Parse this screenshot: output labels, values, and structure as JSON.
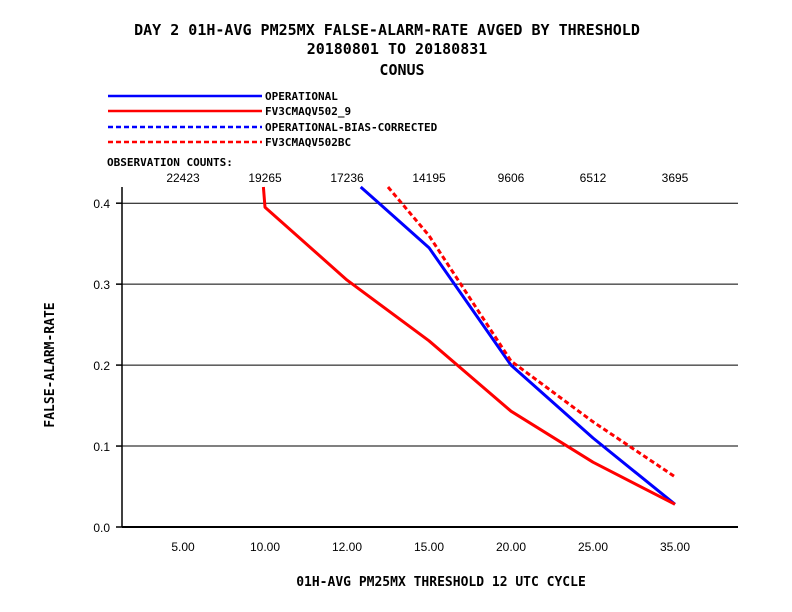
{
  "chart_data": {
    "type": "line",
    "title_lines": [
      "DAY 2   01H-AVG PM25MX FALSE-ALARM-RATE   AVGED BY THRESHOLD",
      "20180801 TO 20180831",
      "CONUS"
    ],
    "xlabel": "01H-AVG PM25MX THRESHOLD     12 UTC CYCLE",
    "ylabel": "FALSE-ALARM-RATE",
    "x_categories": [
      "5.00",
      "10.00",
      "12.00",
      "15.00",
      "20.00",
      "25.00",
      "35.00"
    ],
    "ylim": [
      0,
      0.42
    ],
    "y_ticks": [
      "0.0",
      "0.1",
      "0.2",
      "0.3",
      "0.4"
    ],
    "grid": "horizontal",
    "observation_counts_label": "OBSERVATION COUNTS:",
    "observation_counts": [
      "22423",
      "19265",
      "17236",
      "14195",
      "9606",
      "6512",
      "3695"
    ],
    "legend_position": "top-left",
    "series": [
      {
        "name": "OPERATIONAL",
        "color": "#0000ff",
        "dash": "solid",
        "points": [
          [
            12.5,
            0.42
          ],
          [
            15.0,
            0.345
          ],
          [
            20.0,
            0.2
          ],
          [
            25.0,
            0.11
          ],
          [
            35.0,
            0.028
          ]
        ]
      },
      {
        "name": "FV3CMAQV502_9",
        "color": "#ff0000",
        "dash": "solid",
        "points": [
          [
            9.9,
            0.42
          ],
          [
            10.0,
            0.395
          ],
          [
            12.0,
            0.305
          ],
          [
            15.0,
            0.23
          ],
          [
            20.0,
            0.143
          ],
          [
            25.0,
            0.08
          ],
          [
            35.0,
            0.028
          ]
        ]
      },
      {
        "name": "OPERATIONAL-BIAS-CORRECTED",
        "color": "#0000ff",
        "dash": "dashed",
        "points": []
      },
      {
        "name": "FV3CMAQV502BC",
        "color": "#ff0000",
        "dash": "dashed",
        "points": [
          [
            13.5,
            0.42
          ],
          [
            15.0,
            0.36
          ],
          [
            20.0,
            0.205
          ],
          [
            25.0,
            0.13
          ],
          [
            35.0,
            0.062
          ]
        ]
      }
    ]
  }
}
